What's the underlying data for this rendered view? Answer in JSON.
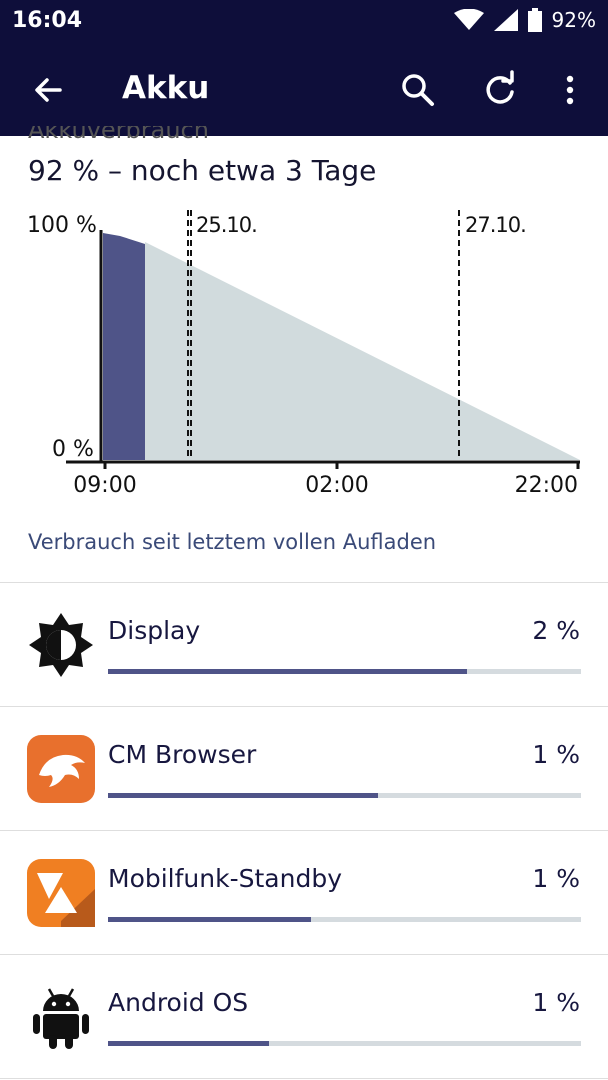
{
  "status_bar": {
    "time": "16:04",
    "battery": "92%"
  },
  "app_bar": {
    "title": "Akku"
  },
  "section": {
    "peek_title": "Akkuverbrauch"
  },
  "summary": "92 % – noch etwa 3 Tage",
  "chart_data": {
    "type": "area",
    "y_labels": [
      "100 %",
      "0 %"
    ],
    "x_ticks": [
      "09:00",
      "02:00",
      "22:00"
    ],
    "date_markers": [
      "25.10.",
      "27.10."
    ],
    "series": [
      {
        "values": [
          99,
          97,
          94
        ],
        "color": "#4f5488"
      },
      {
        "values": [
          94,
          0
        ],
        "color": "#d1dbdd"
      }
    ],
    "ylim": [
      0,
      100
    ]
  },
  "usage_link": "Verbrauch seit letztem vollen Aufladen",
  "apps": [
    {
      "name": "Display",
      "percent": "2 %",
      "share": 0.76,
      "icon": "brightness-icon"
    },
    {
      "name": "CM Browser",
      "percent": "1 %",
      "share": 0.57,
      "icon": "cm-browser-icon"
    },
    {
      "name": "Mobilfunk-Standby",
      "percent": "1 %",
      "share": 0.43,
      "icon": "mobile-standby-icon"
    },
    {
      "name": "Android OS",
      "percent": "1 %",
      "share": 0.34,
      "icon": "android-icon"
    }
  ]
}
